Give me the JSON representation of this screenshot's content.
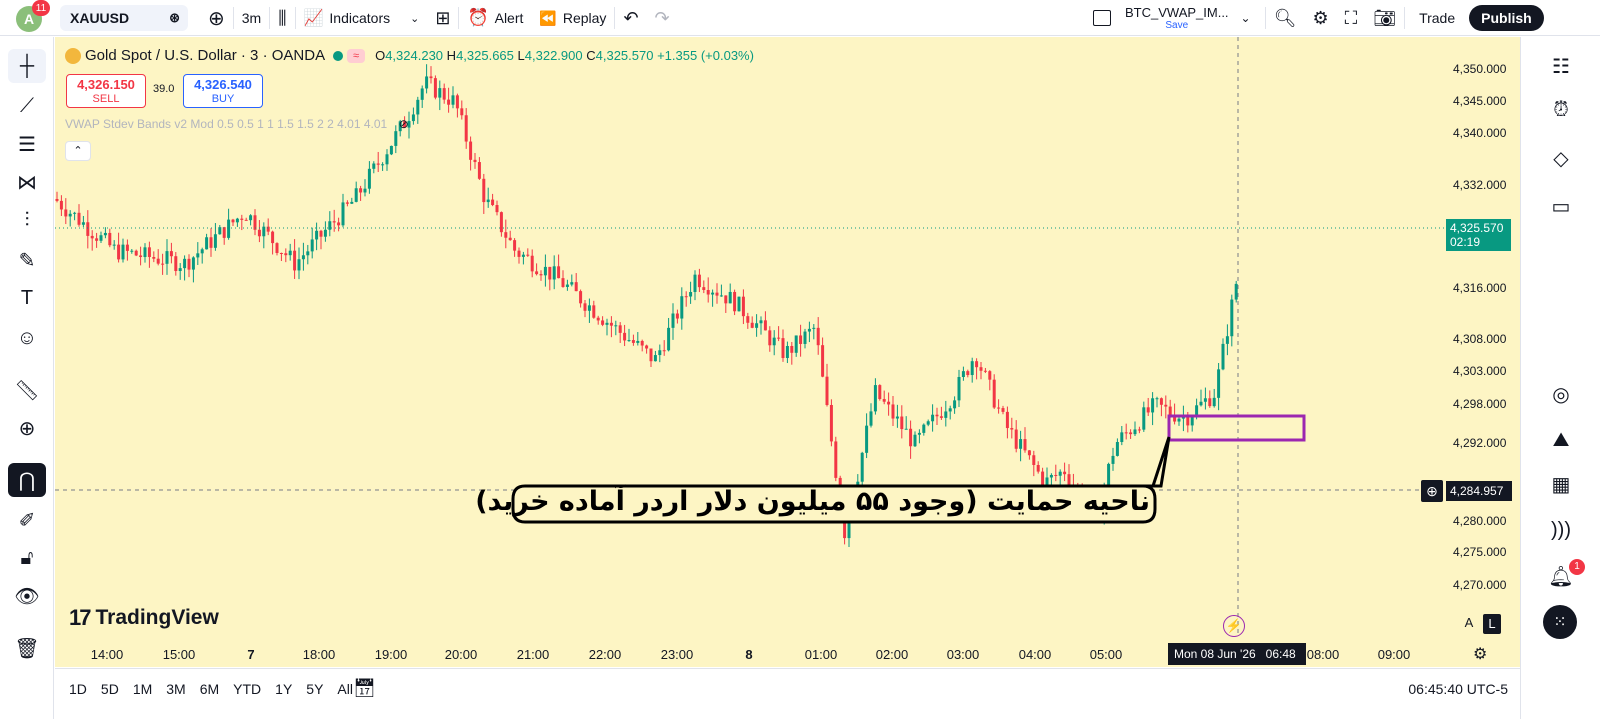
{
  "topbar": {
    "avatar_letter": "A",
    "avatar_badge": "11",
    "symbol": "XAUUSD",
    "interval": "3m",
    "indicators_label": "Indicators",
    "alert_label": "Alert",
    "replay_label": "Replay",
    "layout_name": "BTC_VWAP_IM...",
    "save_label": "Save",
    "trade_label": "Trade",
    "publish_label": "Publish"
  },
  "legend": {
    "title": "Gold Spot / U.S. Dollar · 3 · OANDA",
    "o_label": "O",
    "o_value": "4,324.230",
    "h_label": "H",
    "h_value": "4,325.665",
    "l_label": "L",
    "l_value": "4,322.900",
    "c_label": "C",
    "c_value": "4,325.570",
    "change": "+1.355 (+0.03%)"
  },
  "trade_buttons": {
    "sell_price": "4,326.150",
    "sell_label": "SELL",
    "spread": "39.0",
    "buy_price": "4,326.540",
    "buy_label": "BUY"
  },
  "indicator_line": "VWAP Stdev Bands v2 Mod 0.5 0.5 1 1 1.5 1.5 2 2 4.01 4.01",
  "collapse_symbol": "⌃",
  "price_axis": [
    "4,350.000",
    "4,345.000",
    "4,340.000",
    "4,332.000",
    "4,316.000",
    "4,308.000",
    "4,303.000",
    "4,298.000",
    "4,292.000",
    "4,280.000",
    "4,275.000",
    "4,270.000"
  ],
  "current_price": {
    "value": "4,325.570",
    "countdown": "02:19",
    "color": "#089981"
  },
  "crosshair_price": "4,284.957",
  "time_axis": [
    "14:00",
    "15:00",
    "7",
    "18:00",
    "19:00",
    "20:00",
    "21:00",
    "22:00",
    "23:00",
    "8",
    "01:00",
    "02:00",
    "03:00",
    "04:00",
    "05:00",
    "08:00",
    "09:00"
  ],
  "crosshair_time": "Mon 08 Jun '26   06:48",
  "annotation_text": "ناحیه حمایت (وجود ۵۵ میلیون دلار اردر آماده خرید)",
  "logo_text": "TradingView",
  "scale_buttons": {
    "auto": "A",
    "log": "L"
  },
  "bottom": {
    "ranges": [
      "1D",
      "5D",
      "1M",
      "3M",
      "6M",
      "YTD",
      "1Y",
      "5Y",
      "All"
    ],
    "clock": "06:45:40 UTC-5"
  },
  "notification_badge": "1",
  "colors": {
    "up": "#089981",
    "down": "#f23645",
    "chart_bg": "#fdf5c4",
    "box": "#9c27b0"
  }
}
